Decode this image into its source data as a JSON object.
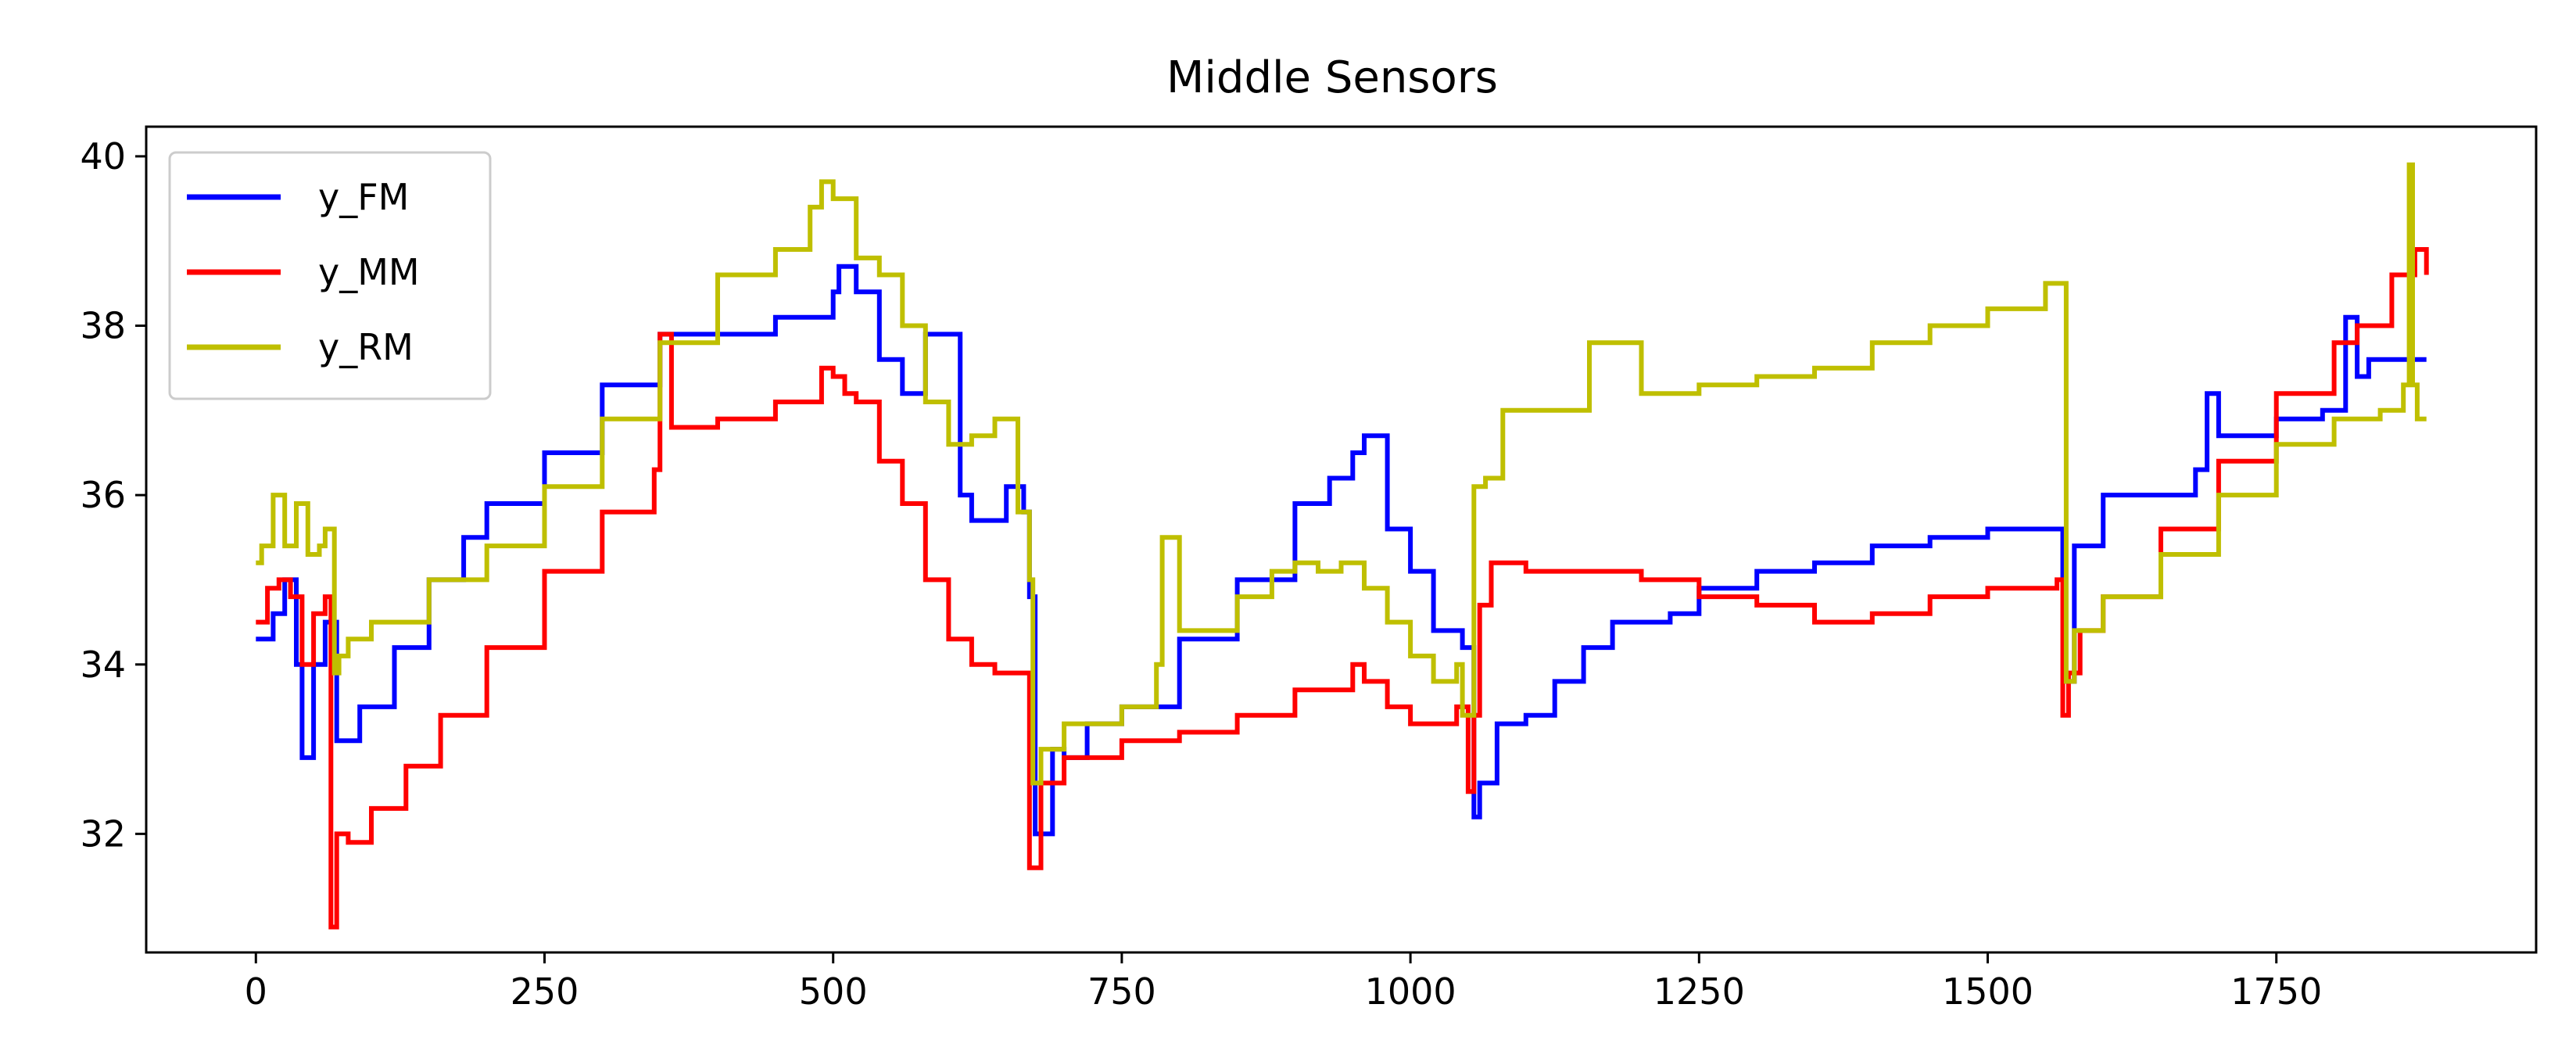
{
  "chart_data": {
    "type": "line",
    "title": "Middle Sensors",
    "xlabel": "",
    "ylabel": "",
    "xlim": [
      -95,
      1975
    ],
    "ylim": [
      30.6,
      40.35
    ],
    "xticks": [
      0,
      250,
      500,
      750,
      1000,
      1250,
      1500,
      1750
    ],
    "yticks": [
      32,
      34,
      36,
      38,
      40
    ],
    "grid": false,
    "legend_position": "upper-left",
    "series": [
      {
        "name": "y_FM",
        "color": "#0000ff",
        "x": [
          0,
          15,
          25,
          35,
          40,
          50,
          60,
          70,
          90,
          120,
          150,
          180,
          200,
          250,
          300,
          350,
          400,
          450,
          500,
          505,
          520,
          540,
          560,
          580,
          600,
          610,
          620,
          650,
          665,
          670,
          675,
          690,
          700,
          720,
          750,
          800,
          850,
          900,
          930,
          950,
          960,
          980,
          1000,
          1020,
          1045,
          1055,
          1060,
          1075,
          1100,
          1125,
          1150,
          1175,
          1200,
          1225,
          1250,
          1300,
          1350,
          1400,
          1450,
          1500,
          1540,
          1560,
          1565,
          1575,
          1600,
          1625,
          1650,
          1680,
          1690,
          1700,
          1720,
          1750,
          1790,
          1810,
          1820,
          1830,
          1850,
          1875,
          1880
        ],
        "y": [
          34.3,
          34.6,
          35.0,
          34.0,
          32.9,
          34.0,
          34.5,
          33.1,
          33.5,
          34.2,
          35.0,
          35.5,
          35.9,
          36.5,
          37.3,
          37.9,
          37.9,
          38.1,
          38.4,
          38.7,
          38.4,
          37.6,
          37.2,
          37.9,
          37.9,
          36.0,
          35.7,
          36.1,
          35.8,
          34.8,
          32.0,
          33.0,
          32.9,
          33.3,
          33.5,
          34.3,
          35.0,
          35.9,
          36.2,
          36.5,
          36.7,
          35.6,
          35.1,
          34.4,
          34.2,
          32.2,
          32.6,
          33.3,
          33.4,
          33.8,
          34.2,
          34.5,
          34.5,
          34.6,
          34.9,
          35.1,
          35.2,
          35.4,
          35.5,
          35.6,
          35.6,
          35.6,
          33.8,
          35.4,
          36.0,
          36.0,
          36.0,
          36.3,
          37.2,
          36.7,
          36.7,
          36.9,
          37.0,
          38.1,
          37.4,
          37.6,
          37.6,
          37.6,
          37.6
        ]
      },
      {
        "name": "y_MM",
        "color": "#ff0000",
        "x": [
          0,
          10,
          20,
          30,
          40,
          50,
          60,
          65,
          70,
          80,
          100,
          130,
          160,
          200,
          250,
          300,
          345,
          350,
          360,
          400,
          450,
          490,
          500,
          510,
          520,
          540,
          560,
          580,
          600,
          620,
          640,
          665,
          670,
          680,
          700,
          750,
          780,
          800,
          850,
          900,
          950,
          960,
          980,
          1000,
          1040,
          1050,
          1055,
          1060,
          1070,
          1080,
          1100,
          1150,
          1200,
          1250,
          1300,
          1350,
          1400,
          1450,
          1500,
          1560,
          1565,
          1570,
          1580,
          1600,
          1650,
          1700,
          1750,
          1800,
          1820,
          1850,
          1870,
          1880
        ],
        "y": [
          34.5,
          34.9,
          35.0,
          34.8,
          34.0,
          34.6,
          34.8,
          30.9,
          32.0,
          31.9,
          32.3,
          32.8,
          33.4,
          34.2,
          35.1,
          35.8,
          36.3,
          37.9,
          36.8,
          36.9,
          37.1,
          37.5,
          37.4,
          37.2,
          37.1,
          36.4,
          35.9,
          35.0,
          34.3,
          34.0,
          33.9,
          33.9,
          31.6,
          32.6,
          32.9,
          33.1,
          33.1,
          33.2,
          33.4,
          33.7,
          34.0,
          33.8,
          33.5,
          33.3,
          33.5,
          32.5,
          33.4,
          34.7,
          35.2,
          35.2,
          35.1,
          35.1,
          35.0,
          34.8,
          34.7,
          34.5,
          34.6,
          34.8,
          34.9,
          35.0,
          33.4,
          33.9,
          34.4,
          34.8,
          35.6,
          36.4,
          37.2,
          37.8,
          38.0,
          38.6,
          38.9,
          38.6
        ]
      },
      {
        "name": "y_RM",
        "color": "#bfbf00",
        "x": [
          0,
          5,
          15,
          25,
          35,
          45,
          55,
          60,
          65,
          68,
          72,
          80,
          100,
          150,
          200,
          250,
          300,
          350,
          400,
          450,
          480,
          490,
          500,
          520,
          540,
          560,
          580,
          600,
          620,
          640,
          660,
          670,
          673,
          680,
          700,
          750,
          780,
          785,
          800,
          850,
          880,
          900,
          920,
          940,
          960,
          980,
          1000,
          1020,
          1040,
          1045,
          1055,
          1065,
          1080,
          1100,
          1150,
          1155,
          1200,
          1250,
          1300,
          1350,
          1400,
          1450,
          1500,
          1550,
          1565,
          1568,
          1575,
          1600,
          1650,
          1700,
          1750,
          1800,
          1840,
          1860,
          1865,
          1868,
          1872,
          1880
        ],
        "y": [
          35.2,
          35.4,
          36.0,
          35.4,
          35.9,
          35.3,
          35.4,
          35.6,
          35.6,
          33.9,
          34.1,
          34.3,
          34.5,
          35.0,
          35.4,
          36.1,
          36.9,
          37.8,
          38.6,
          38.9,
          39.4,
          39.7,
          39.5,
          38.8,
          38.6,
          38.0,
          37.1,
          36.6,
          36.7,
          36.9,
          35.8,
          35.0,
          32.6,
          33.0,
          33.3,
          33.5,
          34.0,
          35.5,
          34.4,
          34.8,
          35.1,
          35.2,
          35.1,
          35.2,
          34.9,
          34.5,
          34.1,
          33.8,
          34.0,
          33.4,
          36.1,
          36.2,
          37.0,
          37.0,
          37.0,
          37.8,
          37.2,
          37.3,
          37.4,
          37.5,
          37.8,
          38.0,
          38.2,
          38.5,
          38.5,
          33.8,
          34.4,
          34.8,
          35.3,
          36.0,
          36.6,
          36.9,
          37.0,
          37.3,
          39.9,
          37.3,
          36.9,
          36.9
        ]
      }
    ]
  }
}
